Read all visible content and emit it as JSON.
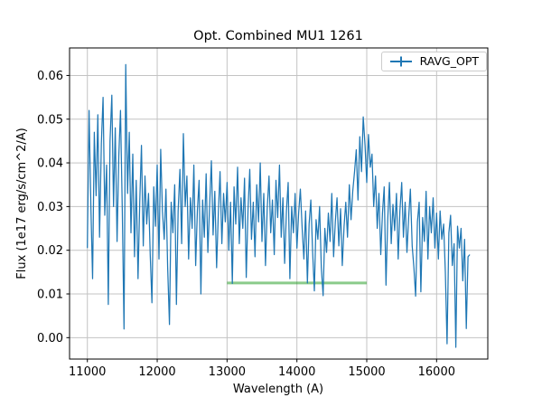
{
  "chart_data": {
    "type": "line",
    "title": "Opt. Combined MU1 1261",
    "xlabel": "Wavelength (A)",
    "ylabel": "Flux (1e17 erg/s/cm^2/A)",
    "legend": {
      "location": "upper right",
      "entries": [
        {
          "label": "RAVG_OPT",
          "handle": "errorbar-icon",
          "color": "#1f77b4"
        }
      ]
    },
    "axes": {
      "xlim": [
        10745,
        16733
      ],
      "ylim": [
        -0.0049,
        0.0663
      ],
      "grid": true,
      "x_ticks": {
        "values": [
          11000,
          12000,
          13000,
          14000,
          15000,
          16000
        ],
        "labels": [
          "11000",
          "12000",
          "13000",
          "14000",
          "15000",
          "16000"
        ]
      },
      "y_ticks": {
        "values": [
          0.0,
          0.01,
          0.02,
          0.03,
          0.04,
          0.05,
          0.06
        ],
        "labels": [
          "0.00",
          "0.01",
          "0.02",
          "0.03",
          "0.04",
          "0.05",
          "0.06"
        ]
      }
    },
    "colors": {
      "spectrum_line": "#1f77b4",
      "reference_line": "#2ca02c",
      "grid_line": "#c3c3c3",
      "spine": "#000000",
      "legend_border": "#cccccc",
      "background": "#ffffff"
    },
    "series": [
      {
        "name": "RAVG_OPT",
        "style": "errorbar-line",
        "color": "#1f77b4",
        "x_start": 11000,
        "x_step": 25,
        "values": [
          0.0205,
          0.052,
          0.03,
          0.0135,
          0.047,
          0.0325,
          0.051,
          0.023,
          0.0445,
          0.055,
          0.028,
          0.0395,
          0.0076,
          0.045,
          0.0555,
          0.03,
          0.048,
          0.022,
          0.0415,
          0.052,
          0.029,
          0.002,
          0.0625,
          0.033,
          0.047,
          0.024,
          0.042,
          0.0185,
          0.036,
          0.0135,
          0.031,
          0.044,
          0.021,
          0.037,
          0.026,
          0.033,
          0.019,
          0.008,
          0.0345,
          0.0255,
          0.0395,
          0.018,
          0.0431,
          0.029,
          0.0225,
          0.034,
          0.016,
          0.003,
          0.031,
          0.024,
          0.035,
          0.0076,
          0.029,
          0.0385,
          0.0215,
          0.0467,
          0.03,
          0.037,
          0.018,
          0.032,
          0.025,
          0.0395,
          0.0165,
          0.029,
          0.036,
          0.01,
          0.0315,
          0.023,
          0.0375,
          0.0195,
          0.03,
          0.0405,
          0.0235,
          0.0335,
          0.016,
          0.0285,
          0.038,
          0.0215,
          0.033,
          0.0265,
          0.0355,
          0.02,
          0.031,
          0.0124,
          0.0345,
          0.026,
          0.039,
          0.0215,
          0.032,
          0.025,
          0.0365,
          0.0138,
          0.0295,
          0.0385,
          0.0225,
          0.031,
          0.0185,
          0.035,
          0.0265,
          0.04,
          0.022,
          0.033,
          0.0165,
          0.0295,
          0.037,
          0.024,
          0.0315,
          0.019,
          0.036,
          0.0275,
          0.0395,
          0.023,
          0.032,
          0.017,
          0.029,
          0.0355,
          0.0135,
          0.03,
          0.024,
          0.033,
          0.0205,
          0.0285,
          0.034,
          0.025,
          0.018,
          0.029,
          0.0125,
          0.026,
          0.0315,
          0.0195,
          0.0107,
          0.027,
          0.0225,
          0.03,
          0.016,
          0.0096,
          0.025,
          0.0195,
          0.0285,
          0.022,
          0.033,
          0.0185,
          0.0265,
          0.032,
          0.021,
          0.0295,
          0.0165,
          0.0255,
          0.031,
          0.023,
          0.035,
          0.027,
          0.0335,
          0.038,
          0.043,
          0.0315,
          0.046,
          0.038,
          0.0505,
          0.044,
          0.0355,
          0.0465,
          0.039,
          0.042,
          0.03,
          0.037,
          0.025,
          0.033,
          0.019,
          0.0285,
          0.0345,
          0.012,
          0.027,
          0.0355,
          0.0215,
          0.0305,
          0.0245,
          0.033,
          0.018,
          0.029,
          0.0355,
          0.023,
          0.031,
          0.0195,
          0.0275,
          0.034,
          0.021,
          0.016,
          0.0095,
          0.0265,
          0.031,
          0.0105,
          0.0275,
          0.022,
          0.0335,
          0.018,
          0.03,
          0.024,
          0.032,
          0.0205,
          0.0285,
          0.018,
          0.029,
          0.0225,
          0.026,
          0.015,
          -0.0014,
          0.024,
          0.028,
          0.0165,
          0.0215,
          -0.0022,
          0.0255,
          0.0205,
          0.025,
          0.013,
          0.0225,
          0.0021,
          0.0185,
          0.019
        ]
      },
      {
        "name": "flat-reference-segment",
        "style": "solid-line",
        "color": "#2ca02c",
        "opacity": 0.55,
        "x": [
          13000,
          15000
        ],
        "y": [
          0.0125,
          0.0125
        ]
      }
    ]
  }
}
